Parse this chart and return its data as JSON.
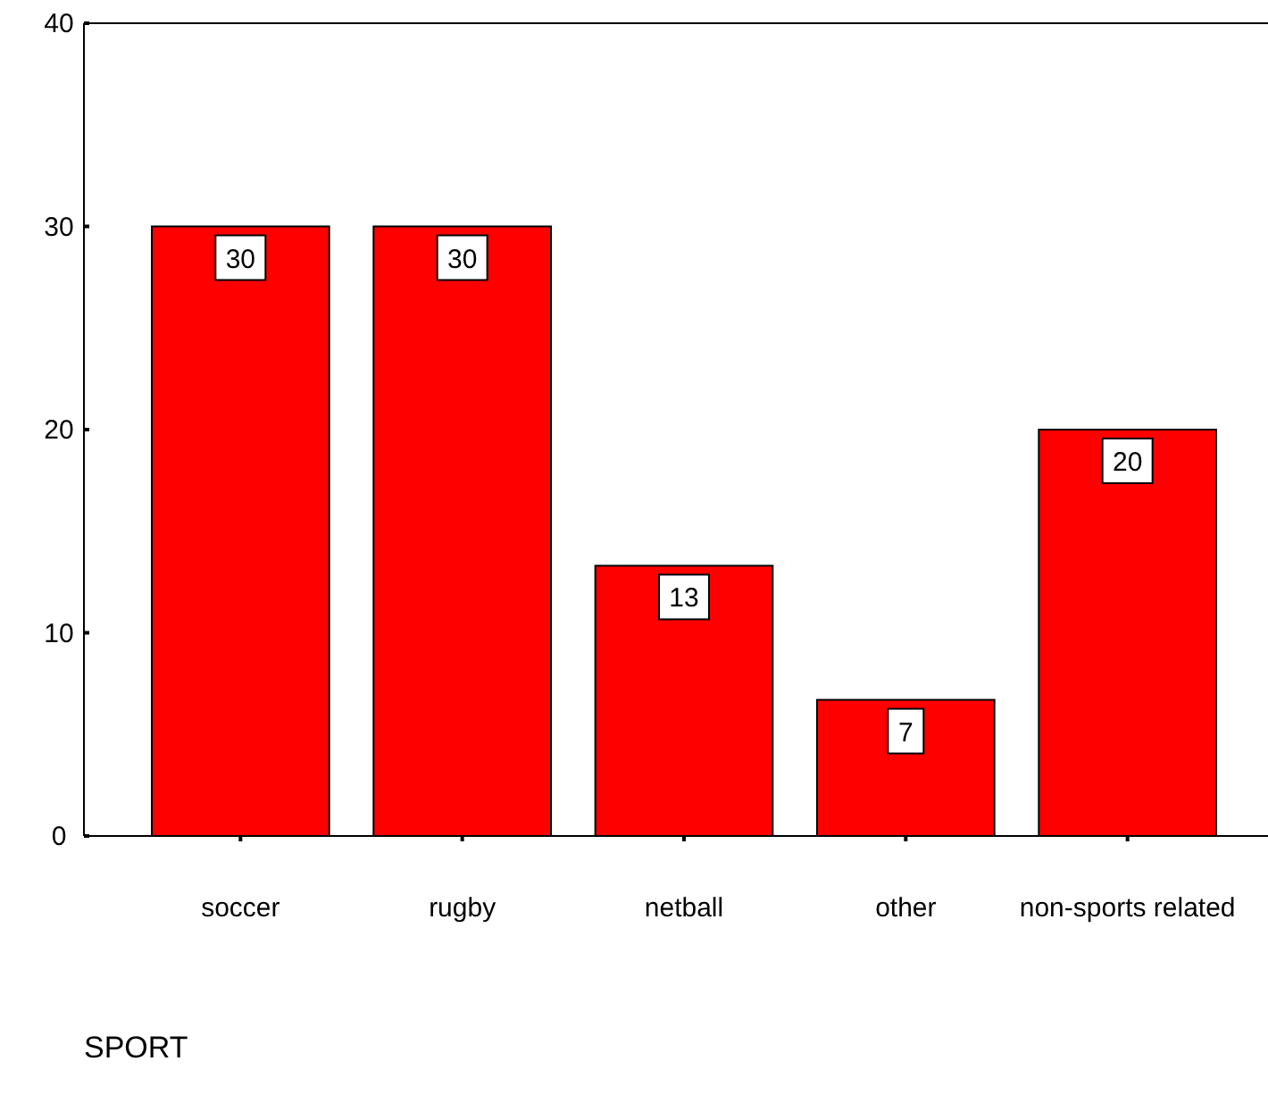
{
  "chart_data": {
    "type": "bar",
    "xlabel": "SPORT",
    "categories": [
      "soccer",
      "rugby",
      "netball",
      "other",
      "non-sports related"
    ],
    "values": [
      30,
      30,
      13.3,
      6.7,
      20
    ],
    "value_labels": [
      "30",
      "30",
      "13",
      "7",
      "20"
    ],
    "color": "#ff0000",
    "ylim": [
      0,
      40
    ],
    "yticks": [
      0,
      10,
      20,
      30,
      40
    ],
    "grid": false
  }
}
